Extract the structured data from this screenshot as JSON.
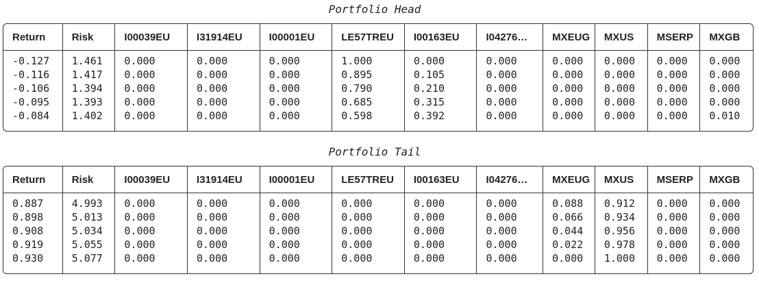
{
  "head": {
    "title": "Portfolio Head",
    "columns": [
      "Return",
      "Risk",
      "I00039EU",
      "I31914EU",
      "I00001EU",
      "LE57TREU",
      "I00163EU",
      "I04276…",
      "MXEUG",
      "MXUS",
      "MSERP",
      "MXGB"
    ],
    "rows": [
      [
        "-0.127",
        "1.461",
        "0.000",
        "0.000",
        "0.000",
        "1.000",
        "0.000",
        "0.000",
        "0.000",
        "0.000",
        "0.000",
        "0.000"
      ],
      [
        "-0.116",
        "1.417",
        "0.000",
        "0.000",
        "0.000",
        "0.895",
        "0.105",
        "0.000",
        "0.000",
        "0.000",
        "0.000",
        "0.000"
      ],
      [
        "-0.106",
        "1.394",
        "0.000",
        "0.000",
        "0.000",
        "0.790",
        "0.210",
        "0.000",
        "0.000",
        "0.000",
        "0.000",
        "0.000"
      ],
      [
        "-0.095",
        "1.393",
        "0.000",
        "0.000",
        "0.000",
        "0.685",
        "0.315",
        "0.000",
        "0.000",
        "0.000",
        "0.000",
        "0.000"
      ],
      [
        "-0.084",
        "1.402",
        "0.000",
        "0.000",
        "0.000",
        "0.598",
        "0.392",
        "0.000",
        "0.000",
        "0.000",
        "0.000",
        "0.010"
      ]
    ]
  },
  "tail": {
    "title": "Portfolio Tail",
    "columns": [
      "Return",
      "Risk",
      "I00039EU",
      "I31914EU",
      "I00001EU",
      "LE57TREU",
      "I00163EU",
      "I04276…",
      "MXEUG",
      "MXUS",
      "MSERP",
      "MXGB"
    ],
    "rows": [
      [
        "0.887",
        "4.993",
        "0.000",
        "0.000",
        "0.000",
        "0.000",
        "0.000",
        "0.000",
        "0.088",
        "0.912",
        "0.000",
        "0.000"
      ],
      [
        "0.898",
        "5.013",
        "0.000",
        "0.000",
        "0.000",
        "0.000",
        "0.000",
        "0.000",
        "0.066",
        "0.934",
        "0.000",
        "0.000"
      ],
      [
        "0.908",
        "5.034",
        "0.000",
        "0.000",
        "0.000",
        "0.000",
        "0.000",
        "0.000",
        "0.044",
        "0.956",
        "0.000",
        "0.000"
      ],
      [
        "0.919",
        "5.055",
        "0.000",
        "0.000",
        "0.000",
        "0.000",
        "0.000",
        "0.000",
        "0.022",
        "0.978",
        "0.000",
        "0.000"
      ],
      [
        "0.930",
        "5.077",
        "0.000",
        "0.000",
        "0.000",
        "0.000",
        "0.000",
        "0.000",
        "0.000",
        "1.000",
        "0.000",
        "0.000"
      ]
    ]
  }
}
